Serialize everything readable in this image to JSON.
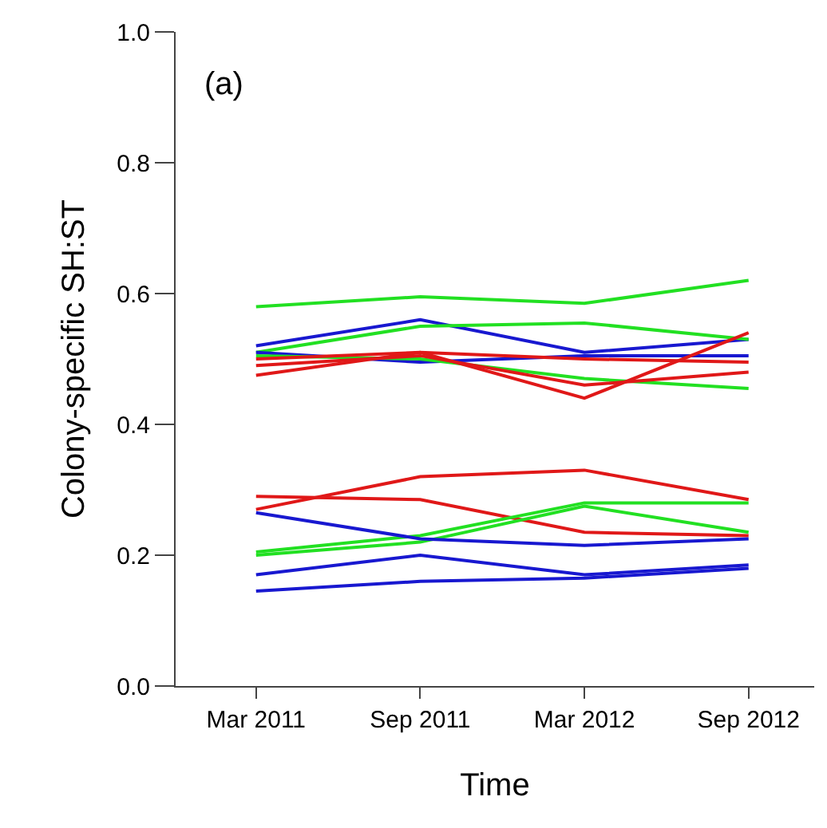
{
  "chart_data": {
    "type": "line",
    "xlabel": "Time",
    "ylabel": "Colony-specific SH:ST",
    "annotations": [
      "(a)"
    ],
    "categories": [
      "Mar 2011",
      "Sep 2011",
      "Mar 2012",
      "Sep 2012"
    ],
    "series": [
      {
        "color": "#22e022",
        "values": [
          0.58,
          0.595,
          0.585,
          0.62
        ]
      },
      {
        "color": "#1818d0",
        "values": [
          0.52,
          0.56,
          0.51,
          0.53
        ]
      },
      {
        "color": "#22e022",
        "values": [
          0.51,
          0.55,
          0.555,
          0.53
        ]
      },
      {
        "color": "#1818d0",
        "values": [
          0.51,
          0.495,
          0.505,
          0.505
        ]
      },
      {
        "color": "#22e022",
        "values": [
          0.505,
          0.5,
          0.47,
          0.455
        ]
      },
      {
        "color": "#e01818",
        "values": [
          0.5,
          0.51,
          0.5,
          0.495
        ]
      },
      {
        "color": "#e01818",
        "values": [
          0.49,
          0.505,
          0.46,
          0.48
        ]
      },
      {
        "color": "#e01818",
        "values": [
          0.475,
          0.51,
          0.44,
          0.54
        ]
      },
      {
        "color": "#e01818",
        "values": [
          0.29,
          0.285,
          0.235,
          0.23
        ]
      },
      {
        "color": "#e01818",
        "values": [
          0.27,
          0.32,
          0.33,
          0.285
        ]
      },
      {
        "color": "#22e022",
        "values": [
          0.205,
          0.23,
          0.28,
          0.28
        ]
      },
      {
        "color": "#22e022",
        "values": [
          0.2,
          0.22,
          0.275,
          0.235
        ]
      },
      {
        "color": "#1818d0",
        "values": [
          0.265,
          0.225,
          0.215,
          0.225
        ]
      },
      {
        "color": "#1818d0",
        "values": [
          0.17,
          0.2,
          0.17,
          0.185
        ]
      },
      {
        "color": "#1818d0",
        "values": [
          0.145,
          0.16,
          0.165,
          0.18
        ]
      }
    ],
    "ylim": [
      0,
      1
    ],
    "yticks": [
      {
        "value": 0,
        "label": "0.0"
      },
      0.2,
      0.4,
      0.6,
      0.8,
      {
        "value": 1,
        "label": "1.0"
      }
    ],
    "grid": false,
    "marker": "none",
    "line_style": "solid"
  }
}
